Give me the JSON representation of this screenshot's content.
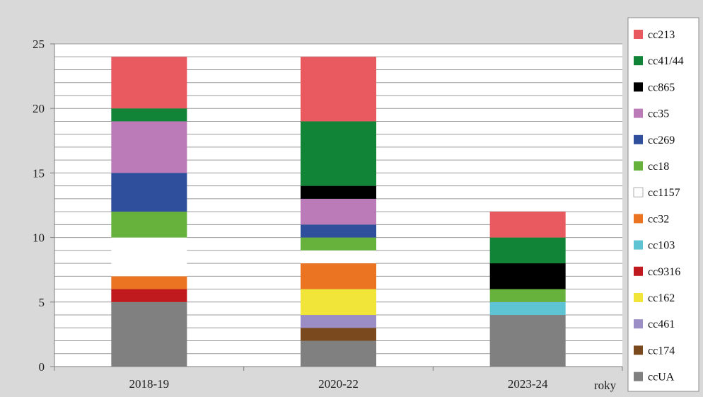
{
  "chart_data": {
    "type": "bar",
    "stacked": true,
    "title": "",
    "xlabel": "roky",
    "ylabel": "",
    "ylim": [
      0,
      25
    ],
    "yticks": [
      0,
      5,
      10,
      15,
      20,
      25
    ],
    "grid": true,
    "legend_position": "right",
    "categories": [
      "2018-19",
      "2020-22",
      "2023-24"
    ],
    "series": [
      {
        "name": "ccUA",
        "color": "#808080",
        "values": [
          5,
          2,
          4
        ]
      },
      {
        "name": "cc174",
        "color": "#7a4a1e",
        "values": [
          0,
          1,
          0
        ]
      },
      {
        "name": "cc461",
        "color": "#9b8ec6",
        "values": [
          0,
          1,
          0
        ]
      },
      {
        "name": "cc162",
        "color": "#f2e53a",
        "values": [
          0,
          2,
          0
        ]
      },
      {
        "name": "cc9316",
        "color": "#c01a1f",
        "values": [
          1,
          0,
          0
        ]
      },
      {
        "name": "cc103",
        "color": "#5ec3d3",
        "values": [
          0,
          0,
          1
        ]
      },
      {
        "name": "cc32",
        "color": "#ea7422",
        "values": [
          1,
          2,
          0
        ]
      },
      {
        "name": "cc1157",
        "color": "#ffffff",
        "values": [
          3,
          1,
          0
        ]
      },
      {
        "name": "cc18",
        "color": "#66b23c",
        "values": [
          2,
          1,
          1
        ]
      },
      {
        "name": "cc269",
        "color": "#2f4f9d",
        "values": [
          3,
          1,
          0
        ]
      },
      {
        "name": "cc35",
        "color": "#bb7bb9",
        "values": [
          4,
          2,
          0
        ]
      },
      {
        "name": "cc865",
        "color": "#000000",
        "values": [
          0,
          1,
          2
        ]
      },
      {
        "name": "cc41/44",
        "color": "#128437",
        "values": [
          1,
          5,
          2
        ]
      },
      {
        "name": "cc213",
        "color": "#e95960",
        "values": [
          4,
          5,
          2
        ]
      }
    ],
    "legend_order": [
      "cc213",
      "cc41/44",
      "cc865",
      "cc35",
      "cc269",
      "cc18",
      "cc1157",
      "cc32",
      "cc103",
      "cc9316",
      "cc162",
      "cc461",
      "cc174",
      "ccUA"
    ]
  }
}
